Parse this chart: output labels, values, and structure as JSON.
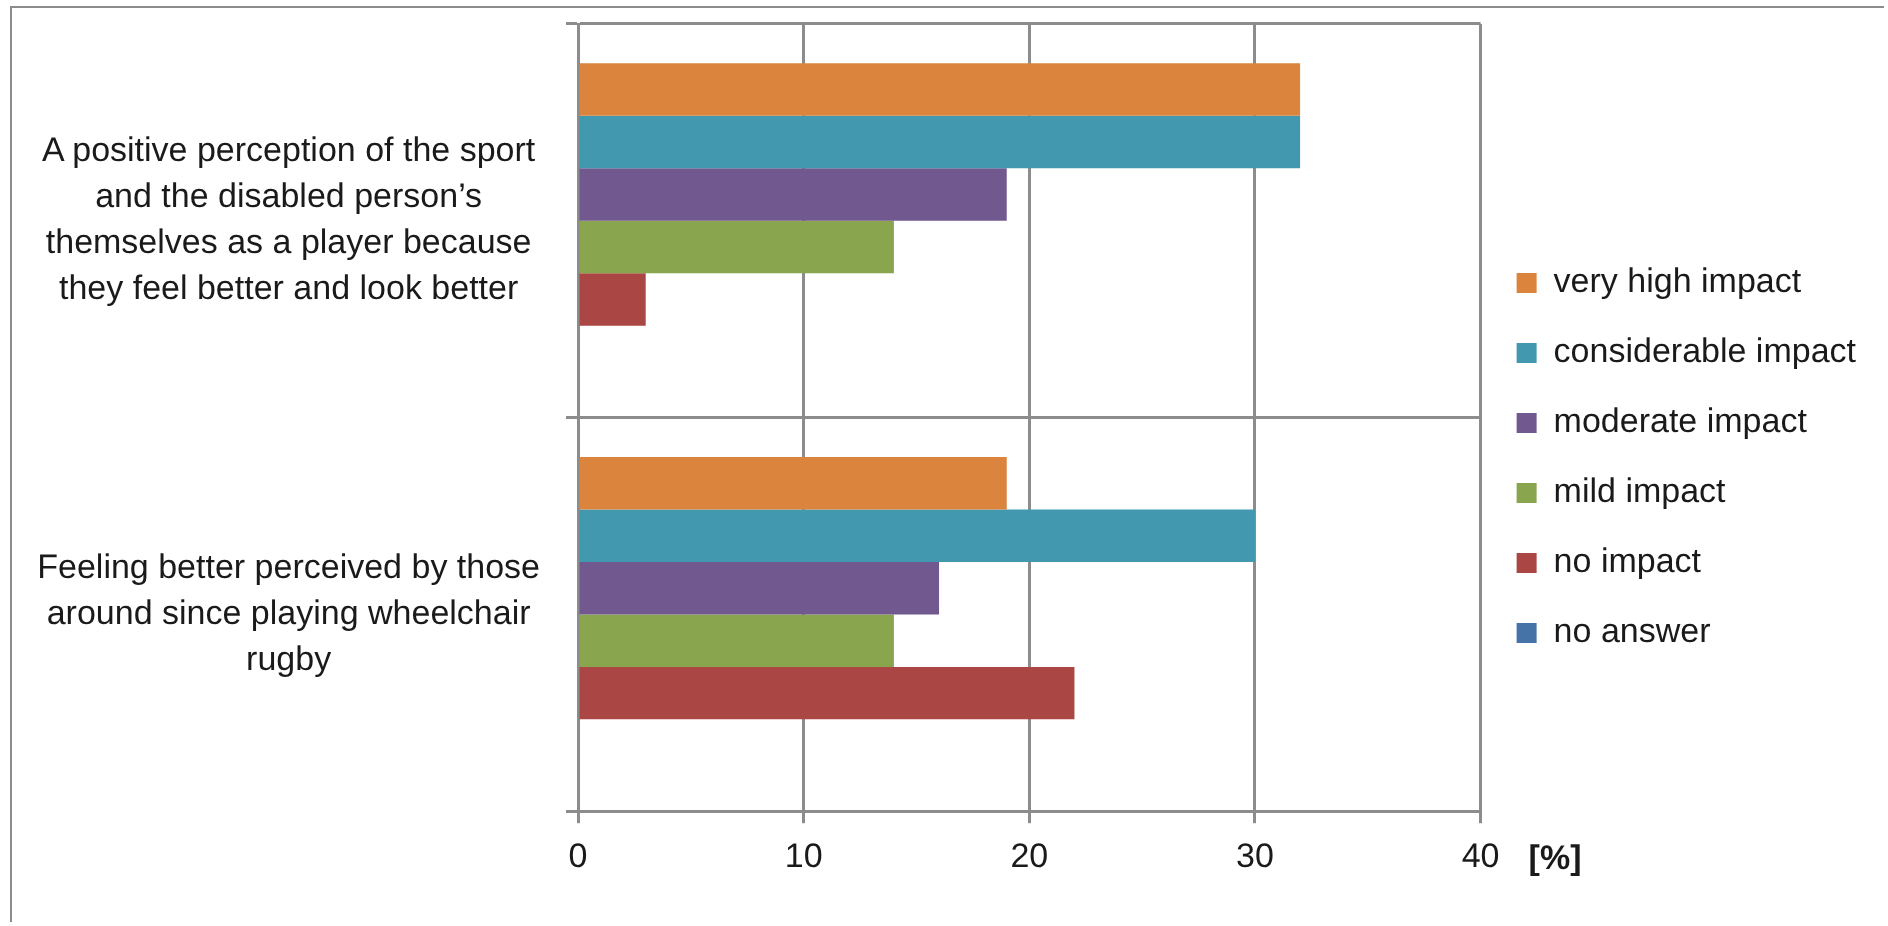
{
  "chart_data": {
    "type": "bar",
    "orientation": "horizontal",
    "categories": [
      "A positive perception of the sport and the disabled person’s themselves as a player because they feel better and look better",
      "Feeling better perceived by those around since playing wheelchair rugby"
    ],
    "series": [
      {
        "name": "very high impact",
        "color": "#db843d",
        "values": [
          32,
          19
        ]
      },
      {
        "name": "considerable impact",
        "color": "#4198af",
        "values": [
          32,
          30
        ]
      },
      {
        "name": "moderate impact",
        "color": "#71588f",
        "values": [
          19,
          16
        ]
      },
      {
        "name": "mild impact",
        "color": "#89a54e",
        "values": [
          14,
          14
        ]
      },
      {
        "name": "no impact",
        "color": "#aa4643",
        "values": [
          3,
          22
        ]
      },
      {
        "name": "no answer",
        "color": "#4572a7",
        "values": [
          0,
          0
        ]
      }
    ],
    "xlabel": "[%]",
    "xlim": [
      0,
      40
    ],
    "xticks": [
      0,
      10,
      20,
      30,
      40
    ],
    "grid": true,
    "legend": "right"
  }
}
